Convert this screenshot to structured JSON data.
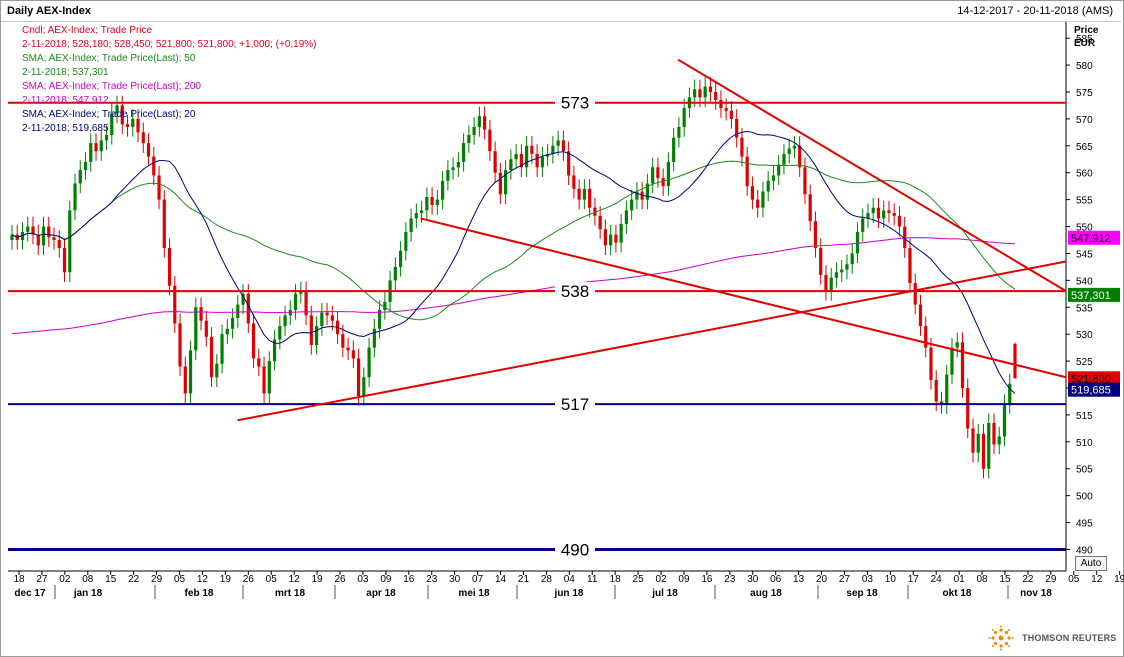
{
  "header": {
    "title": "Daily AEX-Index",
    "date_range": "14-12-2017 - 20-11-2018 (AMS)"
  },
  "legend": [
    {
      "text": "Cndl; AEX-Index; Trade Price",
      "color": "#e0001b"
    },
    {
      "text": "2-11-2018; 528,180; 528,450; 521,800; 521,800; +1,000; (+0,19%)",
      "color": "#e0001b"
    },
    {
      "text": "SMA; AEX-Index; Trade Price(Last);  50",
      "color": "#1a8a1a"
    },
    {
      "text": "2-11-2018; 537,301",
      "color": "#1a8a1a"
    },
    {
      "text": "SMA; AEX-Index; Trade Price(Last);  200",
      "color": "#cc00cc"
    },
    {
      "text": "2-11-2018; 547,912",
      "color": "#cc00cc"
    },
    {
      "text": "SMA; AEX-Index; Trade Price(Last);  20",
      "color": "#000080"
    },
    {
      "text": "2-11-2018; 519,685",
      "color": "#000080"
    }
  ],
  "axis": {
    "unit_line1": "Price",
    "unit_line2": "EUR",
    "auto_label": "Auto"
  },
  "brand": {
    "name": "THOMSON REUTERS"
  },
  "colors": {
    "up": "#008000",
    "down": "#e00000",
    "sma20": "#000080",
    "sma50": "#1a8a1a",
    "sma200": "#cc00cc",
    "resistance": "#e00000",
    "support": "#00008b"
  },
  "chart_data": {
    "type": "candlestick",
    "title": "Daily AEX-Index",
    "ylabel": "Price EUR",
    "ylim": [
      486,
      588
    ],
    "y_ticks": [
      490,
      495,
      500,
      505,
      510,
      515,
      520,
      525,
      530,
      535,
      540,
      545,
      550,
      555,
      560,
      565,
      570,
      575,
      580,
      585
    ],
    "x_tick_labels": [
      "18",
      "27",
      "02",
      "08",
      "15",
      "22",
      "29",
      "05",
      "12",
      "19",
      "26",
      "05",
      "12",
      "19",
      "26",
      "03",
      "09",
      "16",
      "23",
      "30",
      "07",
      "14",
      "21",
      "28",
      "04",
      "11",
      "18",
      "25",
      "02",
      "09",
      "16",
      "23",
      "30",
      "06",
      "13",
      "20",
      "27",
      "03",
      "10",
      "17",
      "24",
      "01",
      "08",
      "15",
      "22",
      "29",
      "05",
      "12",
      "19"
    ],
    "month_labels": [
      "dec 17",
      "jan 18",
      "feb 18",
      "mrt 18",
      "apr 18",
      "mei 18",
      "jun 18",
      "jul 18",
      "aug 18",
      "sep 18",
      "okt 18",
      "nov 18"
    ],
    "x_start": "2017-12-14",
    "x_end": "2018-11-20",
    "last_candle": {
      "date": "2-11-2018",
      "open": 528.18,
      "high": 528.45,
      "low": 521.8,
      "close": 521.8,
      "change": "+1,000",
      "change_pct": "(+0,19%)"
    },
    "closes": [
      548.5,
      547.5,
      549.0,
      550.0,
      548.5,
      546.5,
      550.0,
      548.0,
      547.5,
      546.0,
      541.5,
      553.0,
      558.0,
      560.5,
      562.0,
      565.5,
      564.0,
      566.0,
      567.0,
      571.0,
      572.5,
      569.0,
      568.5,
      570.0,
      567.5,
      565.5,
      563.0,
      559.5,
      555.0,
      546.0,
      539.0,
      532.0,
      524.0,
      519.0,
      527.0,
      535.0,
      532.5,
      529.5,
      522.0,
      524.5,
      530.0,
      531.0,
      533.0,
      535.5,
      537.5,
      532.0,
      525.5,
      524.0,
      519.0,
      525.0,
      529.0,
      531.5,
      533.5,
      534.5,
      537.5,
      538.0,
      533.5,
      528.0,
      531.5,
      534.0,
      533.5,
      532.5,
      530.0,
      527.5,
      527.0,
      525.5,
      518.5,
      522.0,
      527.5,
      531.0,
      534.5,
      536.0,
      540.0,
      542.5,
      545.5,
      549.0,
      551.5,
      552.5,
      553.0,
      555.5,
      554.0,
      555.0,
      558.5,
      560.5,
      561.0,
      562.0,
      565.5,
      567.0,
      568.5,
      570.5,
      568.0,
      564.0,
      560.0,
      556.0,
      560.5,
      562.5,
      563.5,
      561.0,
      565.0,
      563.5,
      561.0,
      563.0,
      563.5,
      565.0,
      566.0,
      564.0,
      559.5,
      557.0,
      555.0,
      557.0,
      553.5,
      552.0,
      549.5,
      546.5,
      548.5,
      547.0,
      550.5,
      553.0,
      555.0,
      556.5,
      555.0,
      558.0,
      561.0,
      559.0,
      557.5,
      562.0,
      566.5,
      568.5,
      572.0,
      574.0,
      575.5,
      574.0,
      576.0,
      575.0,
      573.5,
      572.0,
      571.5,
      570.0,
      566.5,
      563.0,
      557.5,
      555.0,
      553.5,
      556.5,
      558.5,
      559.5,
      561.5,
      563.5,
      564.5,
      565.0,
      561.0,
      556.0,
      551.0,
      546.0,
      541.0,
      538.0,
      540.5,
      541.5,
      542.0,
      543.0,
      545.0,
      549.0,
      551.5,
      552.5,
      553.5,
      551.5,
      553.0,
      552.5,
      552.0,
      550.0,
      546.0,
      539.5,
      535.5,
      531.5,
      527.5,
      521.5,
      517.5,
      517.0,
      522.5,
      527.5,
      528.5,
      520.0,
      512.5,
      508.0,
      511.5,
      505.0,
      513.5,
      509.5,
      511.0,
      517.0,
      520.8,
      521.8
    ],
    "sma20_last": 519.685,
    "sma50_last": 537.301,
    "sma200_last": 547.912,
    "last_price": 521.8,
    "value_tags": [
      {
        "label": "547,912",
        "value": 547.912,
        "bg": "#ff00ff",
        "fg": "#000000"
      },
      {
        "label": "537,301",
        "value": 537.301,
        "bg": "#008000",
        "fg": "#ffffff"
      },
      {
        "label": "521,800",
        "value": 521.8,
        "bg": "#e00000",
        "fg": "#000000"
      },
      {
        "label": "519,685",
        "value": 519.685,
        "bg": "#000080",
        "fg": "#ffffff"
      }
    ],
    "horizontal_levels": [
      {
        "label": "573",
        "value": 573,
        "color": "#e00000"
      },
      {
        "label": "538",
        "value": 538,
        "color": "#e00000"
      },
      {
        "label": "517",
        "value": 517,
        "color": "#00008b"
      },
      {
        "label": "490",
        "value": 490,
        "color": "#00008b"
      }
    ],
    "trendlines": [
      {
        "name": "downtrend resistance",
        "from": [
          "2018-07-18",
          581.0
        ],
        "to": [
          "2018-11-20",
          538.0
        ]
      },
      {
        "name": "descending line",
        "from": [
          "2018-04-26",
          551.5
        ],
        "to": [
          "2018-11-20",
          522.0
        ]
      },
      {
        "name": "rising support",
        "from": [
          "2018-02-26",
          514.0
        ],
        "to": [
          "2018-11-20",
          543.5
        ]
      }
    ]
  }
}
